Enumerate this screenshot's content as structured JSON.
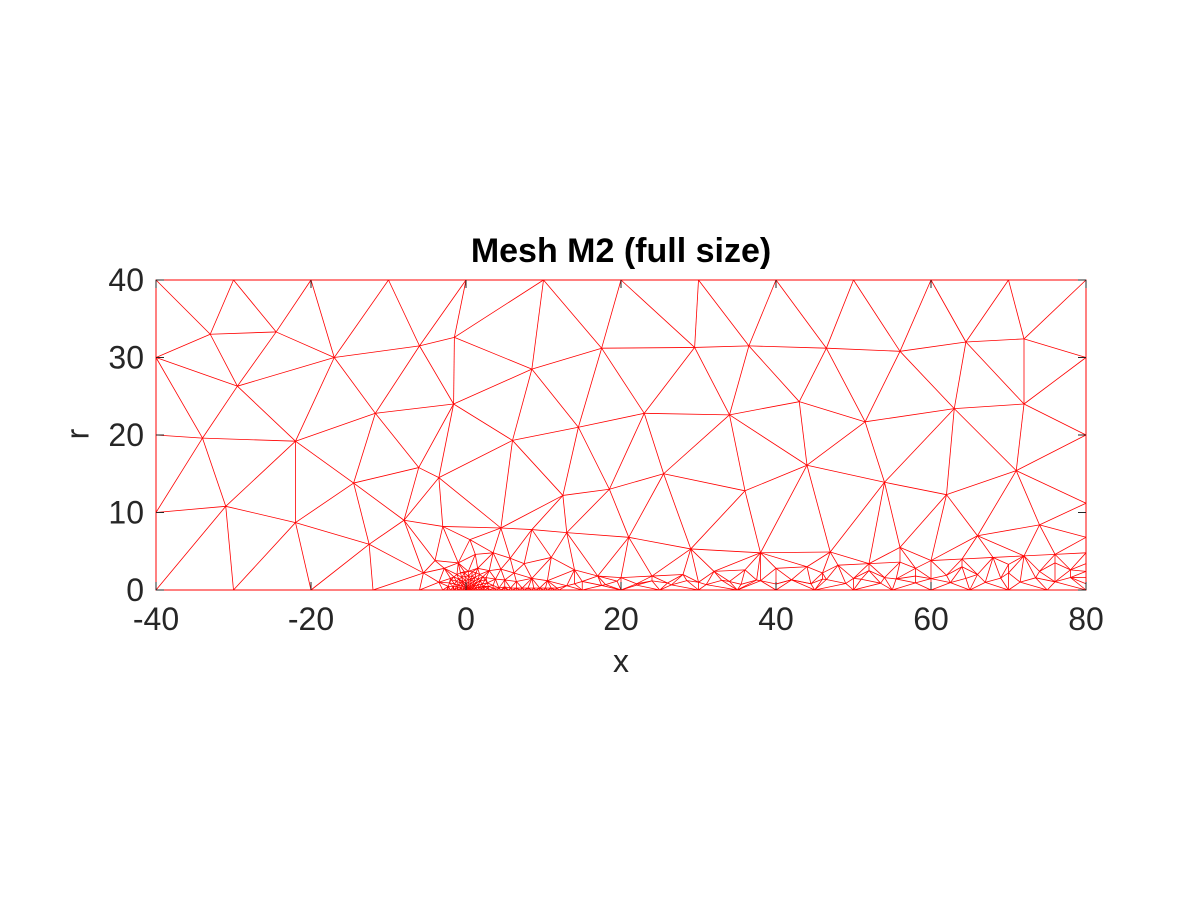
{
  "chart_data": {
    "type": "mesh",
    "title": "Mesh M2 (full size)",
    "xlabel": "x",
    "ylabel": "r",
    "xlim": [
      -40,
      80
    ],
    "ylim": [
      0,
      40
    ],
    "xticks": [
      -40,
      -20,
      0,
      20,
      40,
      60,
      80
    ],
    "yticks": [
      0,
      10,
      20,
      30,
      40
    ],
    "xtick_labels": [
      "-40",
      "-20",
      "0",
      "20",
      "40",
      "60",
      "80"
    ],
    "ytick_labels": [
      "0",
      "10",
      "20",
      "30",
      "40"
    ],
    "grid": false,
    "edge_color": "#ff0000",
    "axes_color": "#262626",
    "outer_nodes": [
      [
        -40,
        40
      ],
      [
        -30,
        40
      ],
      [
        -20,
        40
      ],
      [
        -10,
        40
      ],
      [
        0,
        40
      ],
      [
        10,
        40
      ],
      [
        20,
        40
      ],
      [
        30,
        40
      ],
      [
        40,
        40
      ],
      [
        50,
        40
      ],
      [
        60,
        40
      ],
      [
        70,
        40
      ],
      [
        80,
        40
      ],
      [
        -33,
        33
      ],
      [
        -24.5,
        33.3
      ],
      [
        -17,
        30
      ],
      [
        -6,
        31.5
      ],
      [
        -1.5,
        32.6
      ],
      [
        -29.5,
        26.3
      ],
      [
        -40,
        30
      ],
      [
        8.5,
        28.5
      ],
      [
        17.5,
        31.2
      ],
      [
        29.5,
        31.3
      ],
      [
        36.5,
        31.5
      ],
      [
        46.5,
        31.2
      ],
      [
        56,
        30.8
      ],
      [
        64.5,
        32
      ],
      [
        72,
        32.4
      ],
      [
        80,
        30
      ],
      [
        -34,
        19.6
      ],
      [
        -22,
        19.2
      ],
      [
        -11.7,
        22.8
      ],
      [
        -1.6,
        24
      ],
      [
        -6.1,
        15.8
      ],
      [
        -14.5,
        13.8
      ],
      [
        -3.5,
        14.5
      ],
      [
        6,
        19.3
      ],
      [
        14.5,
        21
      ],
      [
        23,
        22.8
      ],
      [
        34,
        22.6
      ],
      [
        43,
        24.3
      ],
      [
        51.5,
        21.7
      ],
      [
        63,
        23.4
      ],
      [
        72,
        24
      ],
      [
        80,
        20
      ],
      [
        -40,
        20
      ],
      [
        -40,
        10
      ],
      [
        -31,
        10.8
      ],
      [
        -22,
        8.7
      ],
      [
        -12.5,
        5.9
      ],
      [
        -8,
        9
      ],
      [
        -3,
        8.2
      ],
      [
        0.5,
        6.5
      ],
      [
        4.5,
        8
      ],
      [
        8.5,
        7.8
      ],
      [
        12.5,
        12.2
      ],
      [
        18.5,
        13
      ],
      [
        25.5,
        15
      ],
      [
        36,
        12.8
      ],
      [
        44,
        16.1
      ],
      [
        54,
        13.9
      ],
      [
        62,
        12.3
      ],
      [
        71,
        15.4
      ],
      [
        80,
        11.2
      ],
      [
        13,
        7.4
      ],
      [
        21,
        6.8
      ],
      [
        29,
        5.3
      ],
      [
        38,
        4.8
      ],
      [
        47,
        4.9
      ],
      [
        56,
        5.5
      ],
      [
        66,
        7
      ],
      [
        74,
        8.4
      ],
      [
        80,
        6.8
      ],
      [
        -30,
        0
      ],
      [
        -20,
        0
      ],
      [
        -12,
        0
      ],
      [
        -6,
        0
      ],
      [
        -3,
        0
      ],
      [
        -1,
        0
      ],
      [
        0,
        0
      ],
      [
        1,
        0
      ],
      [
        3,
        0
      ],
      [
        6,
        0
      ],
      [
        10,
        0
      ],
      [
        15,
        0
      ],
      [
        20,
        0
      ],
      [
        25,
        0
      ],
      [
        30,
        0
      ],
      [
        35,
        0
      ],
      [
        40,
        0
      ],
      [
        45,
        0
      ],
      [
        50,
        0
      ],
      [
        55,
        0
      ],
      [
        60,
        0
      ],
      [
        65,
        0
      ],
      [
        70,
        0
      ],
      [
        75,
        0
      ],
      [
        80,
        0
      ],
      [
        -40,
        0
      ]
    ],
    "near_field_nodes": [
      [
        -1,
        3.5
      ],
      [
        1.2,
        4.6
      ],
      [
        3.5,
        4.8
      ],
      [
        5.7,
        4.1
      ],
      [
        7.5,
        3.4
      ],
      [
        -0.2,
        2.2
      ],
      [
        1.5,
        2.8
      ],
      [
        3,
        2.5
      ],
      [
        4.5,
        2.7
      ],
      [
        6.2,
        2.2
      ],
      [
        -2,
        1.5
      ],
      [
        -0.5,
        1
      ],
      [
        0.6,
        1.4
      ],
      [
        1.8,
        1.2
      ],
      [
        2.6,
        1.6
      ],
      [
        3.8,
        1.4
      ],
      [
        5,
        1.3
      ],
      [
        6.5,
        1.1
      ],
      [
        8.5,
        1.5
      ],
      [
        10.5,
        1.2
      ],
      [
        -4,
        3.8
      ],
      [
        -5.5,
        2.2
      ],
      [
        -2.8,
        2.8
      ],
      [
        -3.5,
        1
      ],
      [
        -1.2,
        0.5
      ],
      [
        0.2,
        0.4
      ],
      [
        1,
        0.6
      ],
      [
        2.2,
        0.5
      ],
      [
        3.5,
        0.6
      ],
      [
        5,
        0.4
      ],
      [
        11,
        4.2
      ],
      [
        14,
        2.6
      ],
      [
        17,
        1.8
      ],
      [
        20,
        1.6
      ],
      [
        24,
        1.8
      ],
      [
        28,
        2
      ],
      [
        32,
        2.4
      ],
      [
        36,
        2.6
      ],
      [
        40,
        2.8
      ],
      [
        44,
        3
      ],
      [
        48,
        3.2
      ],
      [
        52,
        3.4
      ],
      [
        56,
        3.6
      ],
      [
        60,
        3.8
      ],
      [
        64,
        4
      ],
      [
        68,
        4.2
      ],
      [
        72,
        4.4
      ],
      [
        76,
        4.6
      ],
      [
        80,
        4.8
      ],
      [
        14,
        0.8
      ],
      [
        18,
        0.7
      ],
      [
        22,
        0.8
      ],
      [
        26,
        0.9
      ],
      [
        30,
        1
      ],
      [
        34,
        1.1
      ],
      [
        38,
        1.2
      ],
      [
        42,
        1.3
      ],
      [
        46,
        1.4
      ],
      [
        50,
        1.5
      ],
      [
        54,
        1.6
      ],
      [
        58,
        1.8
      ],
      [
        62,
        1.9
      ],
      [
        66,
        2
      ],
      [
        70,
        2.2
      ],
      [
        74,
        2.4
      ],
      [
        78,
        2.6
      ],
      [
        80,
        1.6
      ],
      [
        46,
        2.2
      ],
      [
        52,
        2.5
      ],
      [
        58,
        2.8
      ],
      [
        64,
        3
      ],
      [
        70,
        3.3
      ],
      [
        76,
        3.5
      ],
      [
        80,
        3.4
      ],
      [
        80,
        2.4
      ],
      [
        80,
        0.8
      ]
    ]
  }
}
